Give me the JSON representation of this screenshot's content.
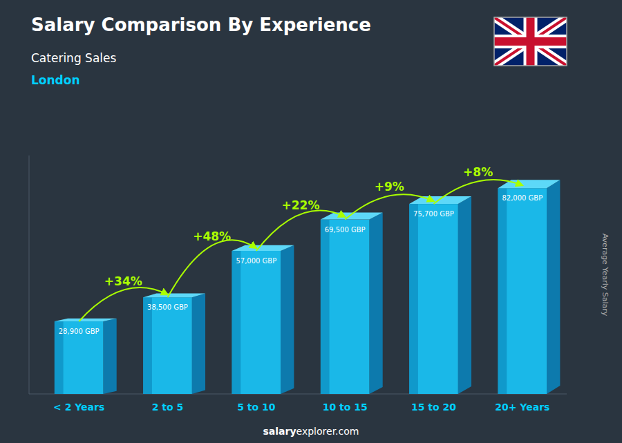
{
  "chart_data": {
    "type": "bar",
    "title": "Salary Comparison By Experience",
    "subtitle": [
      "Catering Sales",
      "London"
    ],
    "categories": [
      "< 2 Years",
      "2 to 5",
      "5 to 10",
      "10 to 15",
      "15 to 20",
      "20+ Years"
    ],
    "values": [
      28900,
      38500,
      57000,
      69500,
      75700,
      82000
    ],
    "value_labels": [
      "28,900 GBP",
      "38,500 GBP",
      "57,000 GBP",
      "69,500 GBP",
      "75,700 GBP",
      "82,000 GBP"
    ],
    "data_labels": true,
    "annotations": [
      "+34%",
      "+48%",
      "+22%",
      "+9%",
      "+8%"
    ],
    "ylabel": "Average Yearly Salary",
    "footer": [
      "salary",
      "explorer.com"
    ],
    "color": "#1ab8e8",
    "ylim": [
      0,
      95000
    ],
    "tick_labels": "x",
    "grid": false
  }
}
